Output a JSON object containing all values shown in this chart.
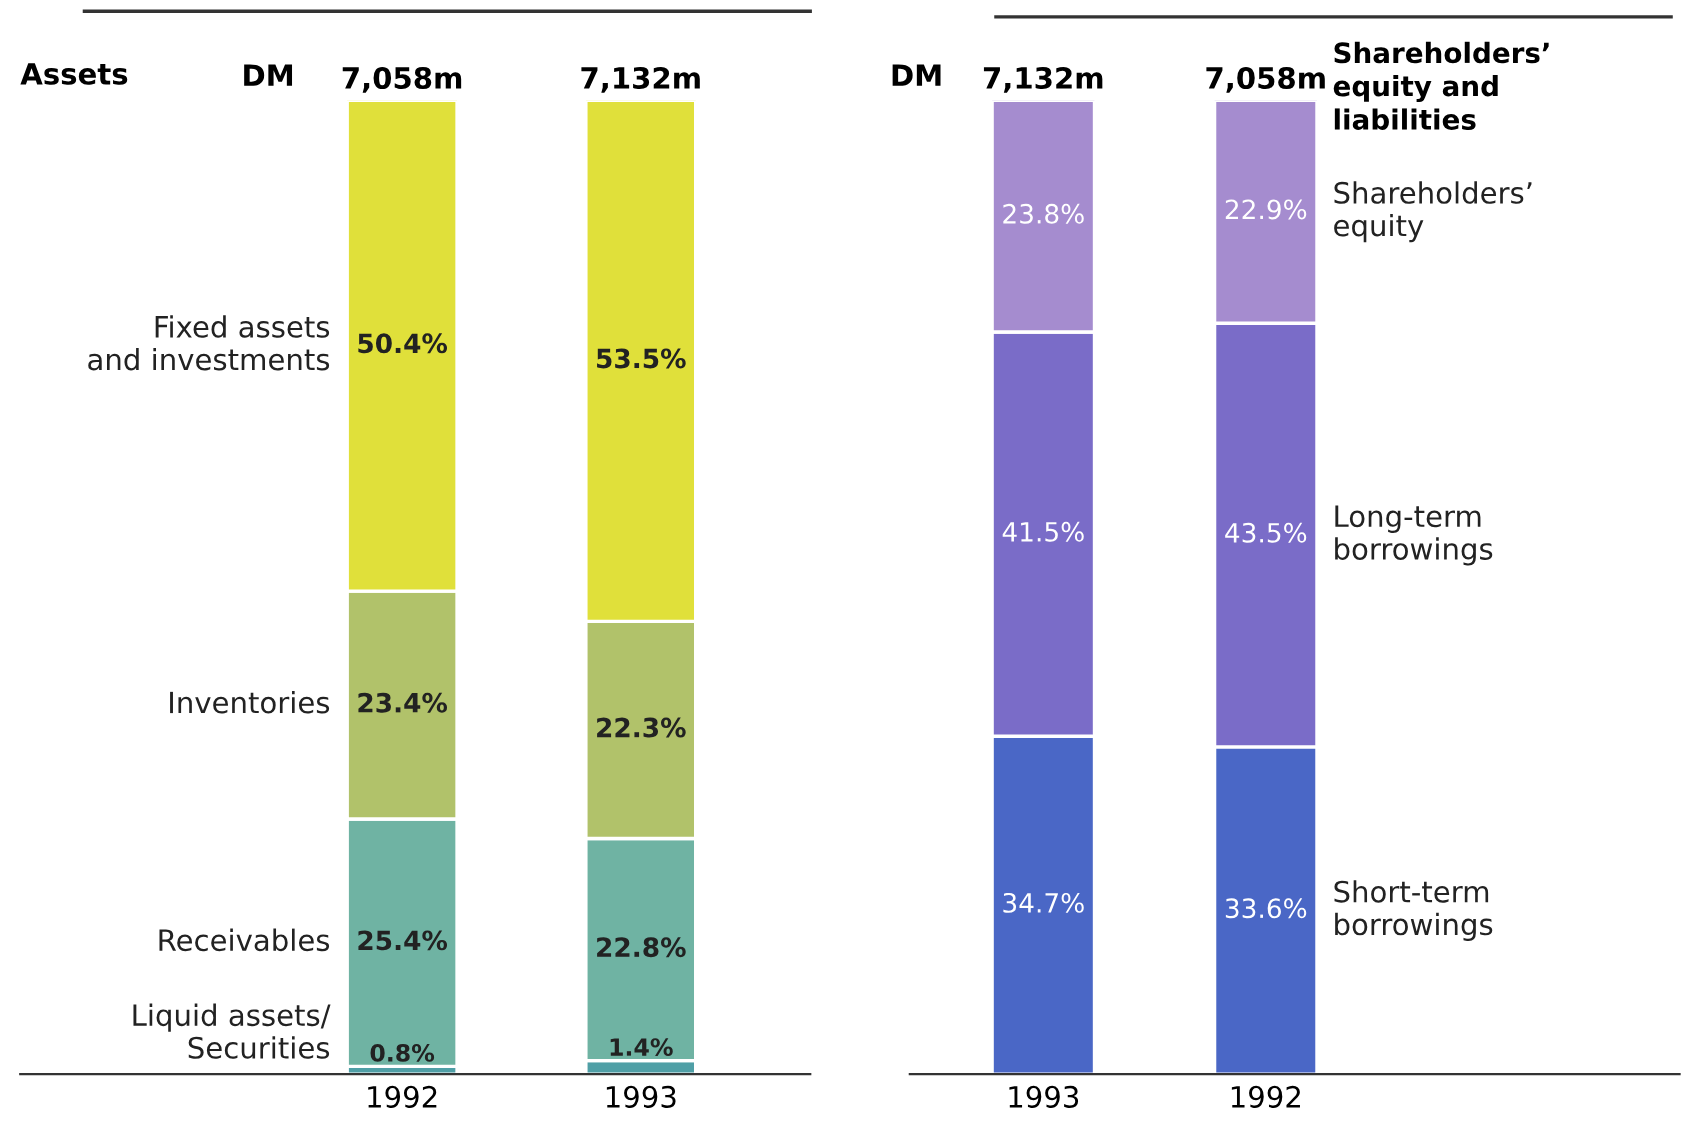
{
  "chart_data": [
    {
      "type": "bar",
      "title": "Assets",
      "categories": [
        "1992",
        "1993"
      ],
      "stacked": true,
      "annotations": [
        "DM",
        {
          "text": "7,058m",
          "x": "1992",
          "y": 100
        },
        {
          "text": "7,132m",
          "x": "1993",
          "y": 100
        }
      ],
      "series": [
        {
          "name": "Liquid assets/\nSecurities",
          "color": "#4f9fa6",
          "values": [
            0.8,
            1.4
          ],
          "value_labels": [
            "0.8%",
            "1.4%"
          ]
        },
        {
          "name": "Receivables",
          "color": "#6fb3a3",
          "values": [
            25.4,
            22.8
          ],
          "value_labels": [
            "25.4%",
            "22.8%"
          ]
        },
        {
          "name": "Inventories",
          "color": "#b1c26a",
          "values": [
            23.4,
            22.3
          ],
          "value_labels": [
            "23.4%",
            "22.3%"
          ]
        },
        {
          "name": "Fixed assets\nand investments",
          "color": "#e0e03a",
          "values": [
            50.4,
            53.5
          ],
          "value_labels": [
            "50.4%",
            "53.5%"
          ]
        }
      ]
    },
    {
      "type": "bar",
      "title": "Shareholders’\nequity and\nliabilities",
      "categories": [
        "1993",
        "1992"
      ],
      "stacked": true,
      "annotations": [
        "DM",
        {
          "text": "7,132m",
          "x": "1993",
          "y": 100
        },
        {
          "text": "7,058m",
          "x": "1992",
          "y": 100
        }
      ],
      "series": [
        {
          "name": "Short-term\nborrowings",
          "color": "#4a67c6",
          "values": [
            34.7,
            33.6
          ],
          "value_labels": [
            "34.7%",
            "33.6%"
          ]
        },
        {
          "name": "Long-term\nborrowings",
          "color": "#7a6cc8",
          "values": [
            41.5,
            43.5
          ],
          "value_labels": [
            "41.5%",
            "43.5%"
          ]
        },
        {
          "name": "Shareholders’\nequity",
          "color": "#a58ccf",
          "values": [
            23.8,
            22.9
          ],
          "value_labels": [
            "23.8%",
            "22.9%"
          ]
        }
      ]
    }
  ]
}
